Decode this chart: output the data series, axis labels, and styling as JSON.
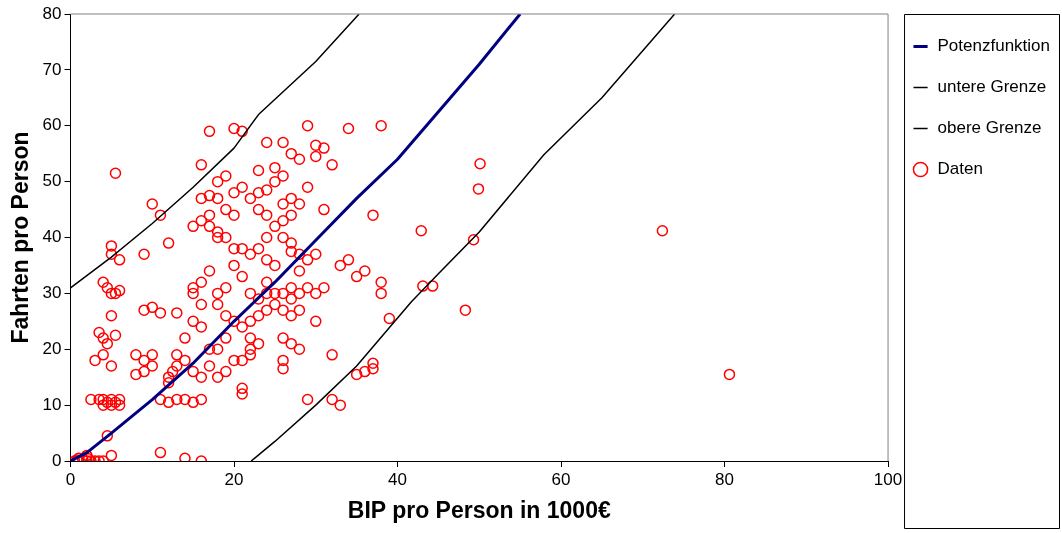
{
  "chart_data": {
    "type": "scatter",
    "xlabel": "BIP pro Person in 1000€",
    "ylabel": "Fahrten pro Person",
    "xlim": [
      0,
      100
    ],
    "xticks": [
      0,
      20,
      40,
      60,
      80,
      100
    ],
    "ylim": [
      0,
      80
    ],
    "yticks": [
      0,
      10,
      20,
      30,
      40,
      50,
      60,
      70,
      80
    ],
    "grid": false,
    "legend": "top right",
    "series": [
      {
        "name": "Potenzfunktion",
        "type": "line",
        "marker": "none",
        "line_style": "solid",
        "color": "#000080",
        "x": [
          0,
          2,
          5,
          10,
          15,
          20,
          25,
          30,
          35,
          40,
          45,
          50,
          55
        ],
        "values": [
          0,
          1.5,
          5,
          11,
          17.5,
          25,
          32,
          39.5,
          47,
          54,
          62.5,
          71,
          80
        ]
      },
      {
        "name": "untere Grenze",
        "type": "line",
        "marker": "none",
        "line_style": "solid",
        "color": "#000000",
        "x": [
          22.1,
          25,
          30,
          35,
          41.7,
          45,
          50,
          57.9,
          65,
          73.9
        ],
        "values": [
          0,
          3.5,
          10,
          17,
          28.5,
          33.5,
          41,
          54.8,
          65,
          80
        ]
      },
      {
        "name": "obere Grenze",
        "type": "line",
        "marker": "none",
        "line_style": "solid",
        "color": "#000000",
        "x": [
          0,
          5,
          10,
          15,
          20,
          23,
          30,
          35.3
        ],
        "values": [
          31,
          36.5,
          42.5,
          49,
          56,
          62,
          71.5,
          80
        ]
      },
      {
        "name": "Daten",
        "type": "scatter",
        "marker": "circle",
        "color": "#ff0000",
        "x": [
          0.5,
          1.5,
          2,
          2.5,
          3,
          1,
          2,
          3.5,
          0.8,
          2.2,
          4,
          4.5,
          5,
          11,
          14,
          16,
          3.5,
          4,
          4.5,
          5,
          5.5,
          6,
          4,
          5,
          2.5,
          6,
          3,
          4,
          5,
          4.5,
          4,
          3.5,
          5.5,
          5,
          5,
          5.5,
          6,
          4,
          4.5,
          5,
          5,
          6,
          5.5,
          10,
          11,
          12,
          9,
          9,
          10,
          13,
          11,
          8,
          9,
          10,
          9,
          8,
          10,
          11,
          12,
          13,
          14,
          12,
          12.5,
          13,
          13,
          14,
          12,
          15,
          16,
          16,
          15,
          14,
          15,
          16,
          17,
          16,
          15,
          15,
          16,
          17,
          18,
          18,
          17,
          16,
          17,
          15,
          16,
          17,
          18,
          16,
          17,
          20,
          21,
          18,
          19,
          20,
          21,
          19,
          20,
          19,
          20,
          21,
          22,
          20,
          21,
          19,
          18,
          18,
          19,
          20,
          21,
          19,
          18,
          17,
          18,
          19,
          20,
          21,
          22,
          22,
          21,
          21,
          22,
          23,
          22,
          23,
          24,
          23,
          22,
          24,
          25,
          26,
          27,
          25,
          24,
          25,
          24,
          23,
          24,
          25,
          24,
          23,
          22,
          23,
          24,
          25,
          23,
          25,
          26,
          24,
          26,
          27,
          29,
          30,
          31,
          30,
          32,
          28,
          29,
          27,
          28,
          26,
          26,
          27,
          26,
          27,
          27,
          28,
          29,
          30,
          28,
          27,
          28,
          29,
          30,
          31,
          26,
          27,
          26,
          27,
          26,
          26,
          28,
          28,
          30,
          29,
          32,
          33,
          31,
          37,
          32,
          34,
          35,
          33,
          36,
          38,
          38,
          39,
          35,
          36,
          37,
          37,
          34,
          38,
          42.9,
          43.1,
          44.3,
          48.3,
          49.3,
          49.9,
          50.1,
          72.4,
          80.6
        ],
        "values": [
          0,
          0.3,
          0,
          0,
          0,
          0.5,
          1,
          0,
          0.2,
          0.4,
          0,
          4.5,
          1,
          1.5,
          0.5,
          0,
          11,
          11,
          10.5,
          11,
          10.5,
          11,
          10,
          10,
          11,
          10,
          18,
          19,
          17,
          21,
          22,
          23,
          22.5,
          26,
          30,
          30,
          30.5,
          32,
          31,
          37,
          38.5,
          36,
          51.5,
          46,
          44,
          39,
          37,
          27,
          27.5,
          26.5,
          26.5,
          19,
          18,
          19,
          16,
          15.5,
          17,
          11,
          10.5,
          11,
          11,
          15,
          16,
          17,
          19,
          18,
          14,
          10.5,
          11,
          15,
          16,
          22,
          25,
          24,
          20,
          28,
          30,
          31,
          32,
          34,
          40,
          41,
          42,
          43,
          44,
          42,
          47,
          47.5,
          47,
          53,
          59,
          59.5,
          59,
          50,
          51,
          48,
          49,
          45,
          44,
          40,
          38,
          38,
          37,
          35,
          33,
          31,
          30,
          28,
          26,
          25,
          24,
          22,
          20,
          17,
          15,
          16,
          18,
          18,
          19,
          20,
          13,
          12,
          22,
          21,
          25,
          26,
          27,
          29,
          30,
          30,
          30,
          30,
          29,
          28,
          32,
          35,
          36,
          38,
          40,
          42,
          44,
          45,
          47,
          48,
          48.5,
          50,
          52,
          52.5,
          51,
          57,
          57,
          55,
          60,
          56.5,
          56,
          54.5,
          53,
          54,
          49,
          47,
          46,
          46,
          43,
          44,
          40,
          39,
          37.5,
          37,
          36,
          37,
          34,
          31,
          30,
          31,
          30,
          31,
          27,
          26,
          22,
          21,
          18,
          16.5,
          20,
          27,
          25,
          11,
          11,
          10,
          45,
          44,
          19,
          36,
          33,
          35,
          34,
          32,
          30,
          25.5,
          15.5,
          16,
          16.5,
          17.5,
          59.5,
          60,
          41.2,
          31.3,
          31.3,
          27,
          39.6,
          48.7,
          53.2,
          41.2,
          15.5
        ]
      }
    ]
  }
}
